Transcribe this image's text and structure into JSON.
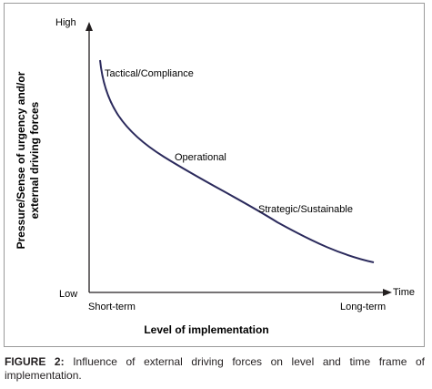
{
  "diagram": {
    "y_axis": {
      "top_label": "High",
      "bottom_label": "Low",
      "title_line1": "Pressure/Sense of urgency and/or",
      "title_line2": "external driving forces"
    },
    "x_axis": {
      "left_label": "Short-term",
      "right_label": "Long-term",
      "end_label": "Time",
      "title": "Level of implementation"
    },
    "curve_labels": {
      "tactical": "Tactical/Compliance",
      "operational": "Operational",
      "strategic": "Strategic/Sustainable"
    },
    "colors": {
      "curve": "#2b2a5c",
      "axis": "#231f20"
    }
  },
  "caption": {
    "label": "FIGURE 2:",
    "text": " Influence of external driving forces on level and time frame of implementation."
  }
}
